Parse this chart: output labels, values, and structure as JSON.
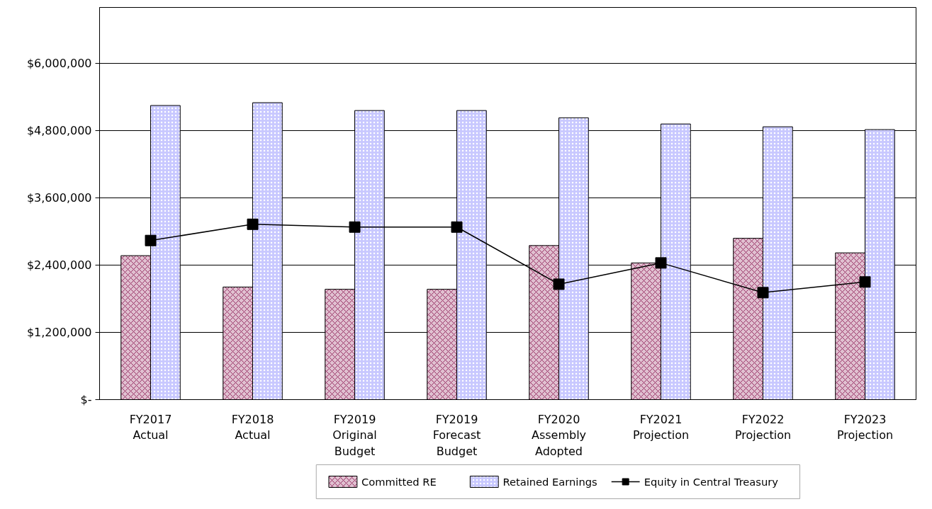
{
  "chart_data": {
    "type": "bar",
    "categories": [
      "FY2017\nActual",
      "FY2018\nActual",
      "FY2019\nOriginal\nBudget",
      "FY2019\nForecast\nBudget",
      "FY2020\nAssembly\nAdopted",
      "FY2021\nProjection",
      "FY2022\nProjection",
      "FY2023\nProjection"
    ],
    "series": [
      {
        "name": "Committed RE",
        "color": "#e0c0d0",
        "values": [
          2570000,
          2010000,
          1970000,
          1970000,
          2750000,
          2440000,
          2880000,
          2620000
        ]
      },
      {
        "name": "Retained Earnings",
        "color": "#c8c8ff",
        "values": [
          5250000,
          5300000,
          5160000,
          5160000,
          5030000,
          4920000,
          4870000,
          4820000
        ]
      },
      {
        "name": "Equity in Central Treasury",
        "type": "line",
        "color": "#000000",
        "marker": "square",
        "values": [
          2840000,
          3130000,
          3080000,
          3080000,
          2060000,
          2440000,
          1910000,
          2100000
        ]
      }
    ],
    "ylim": [
      0,
      7000000
    ],
    "yticks": [
      {
        "value": 0,
        "label": "$-"
      },
      {
        "value": 1200000,
        "label": "$1,200,000"
      },
      {
        "value": 2400000,
        "label": "$2,400,000"
      },
      {
        "value": 3600000,
        "label": "$3,600,000"
      },
      {
        "value": 4800000,
        "label": "$4,800,000"
      },
      {
        "value": 6000000,
        "label": "$6,000,000"
      }
    ],
    "grid": "y",
    "legend": "bottom"
  }
}
